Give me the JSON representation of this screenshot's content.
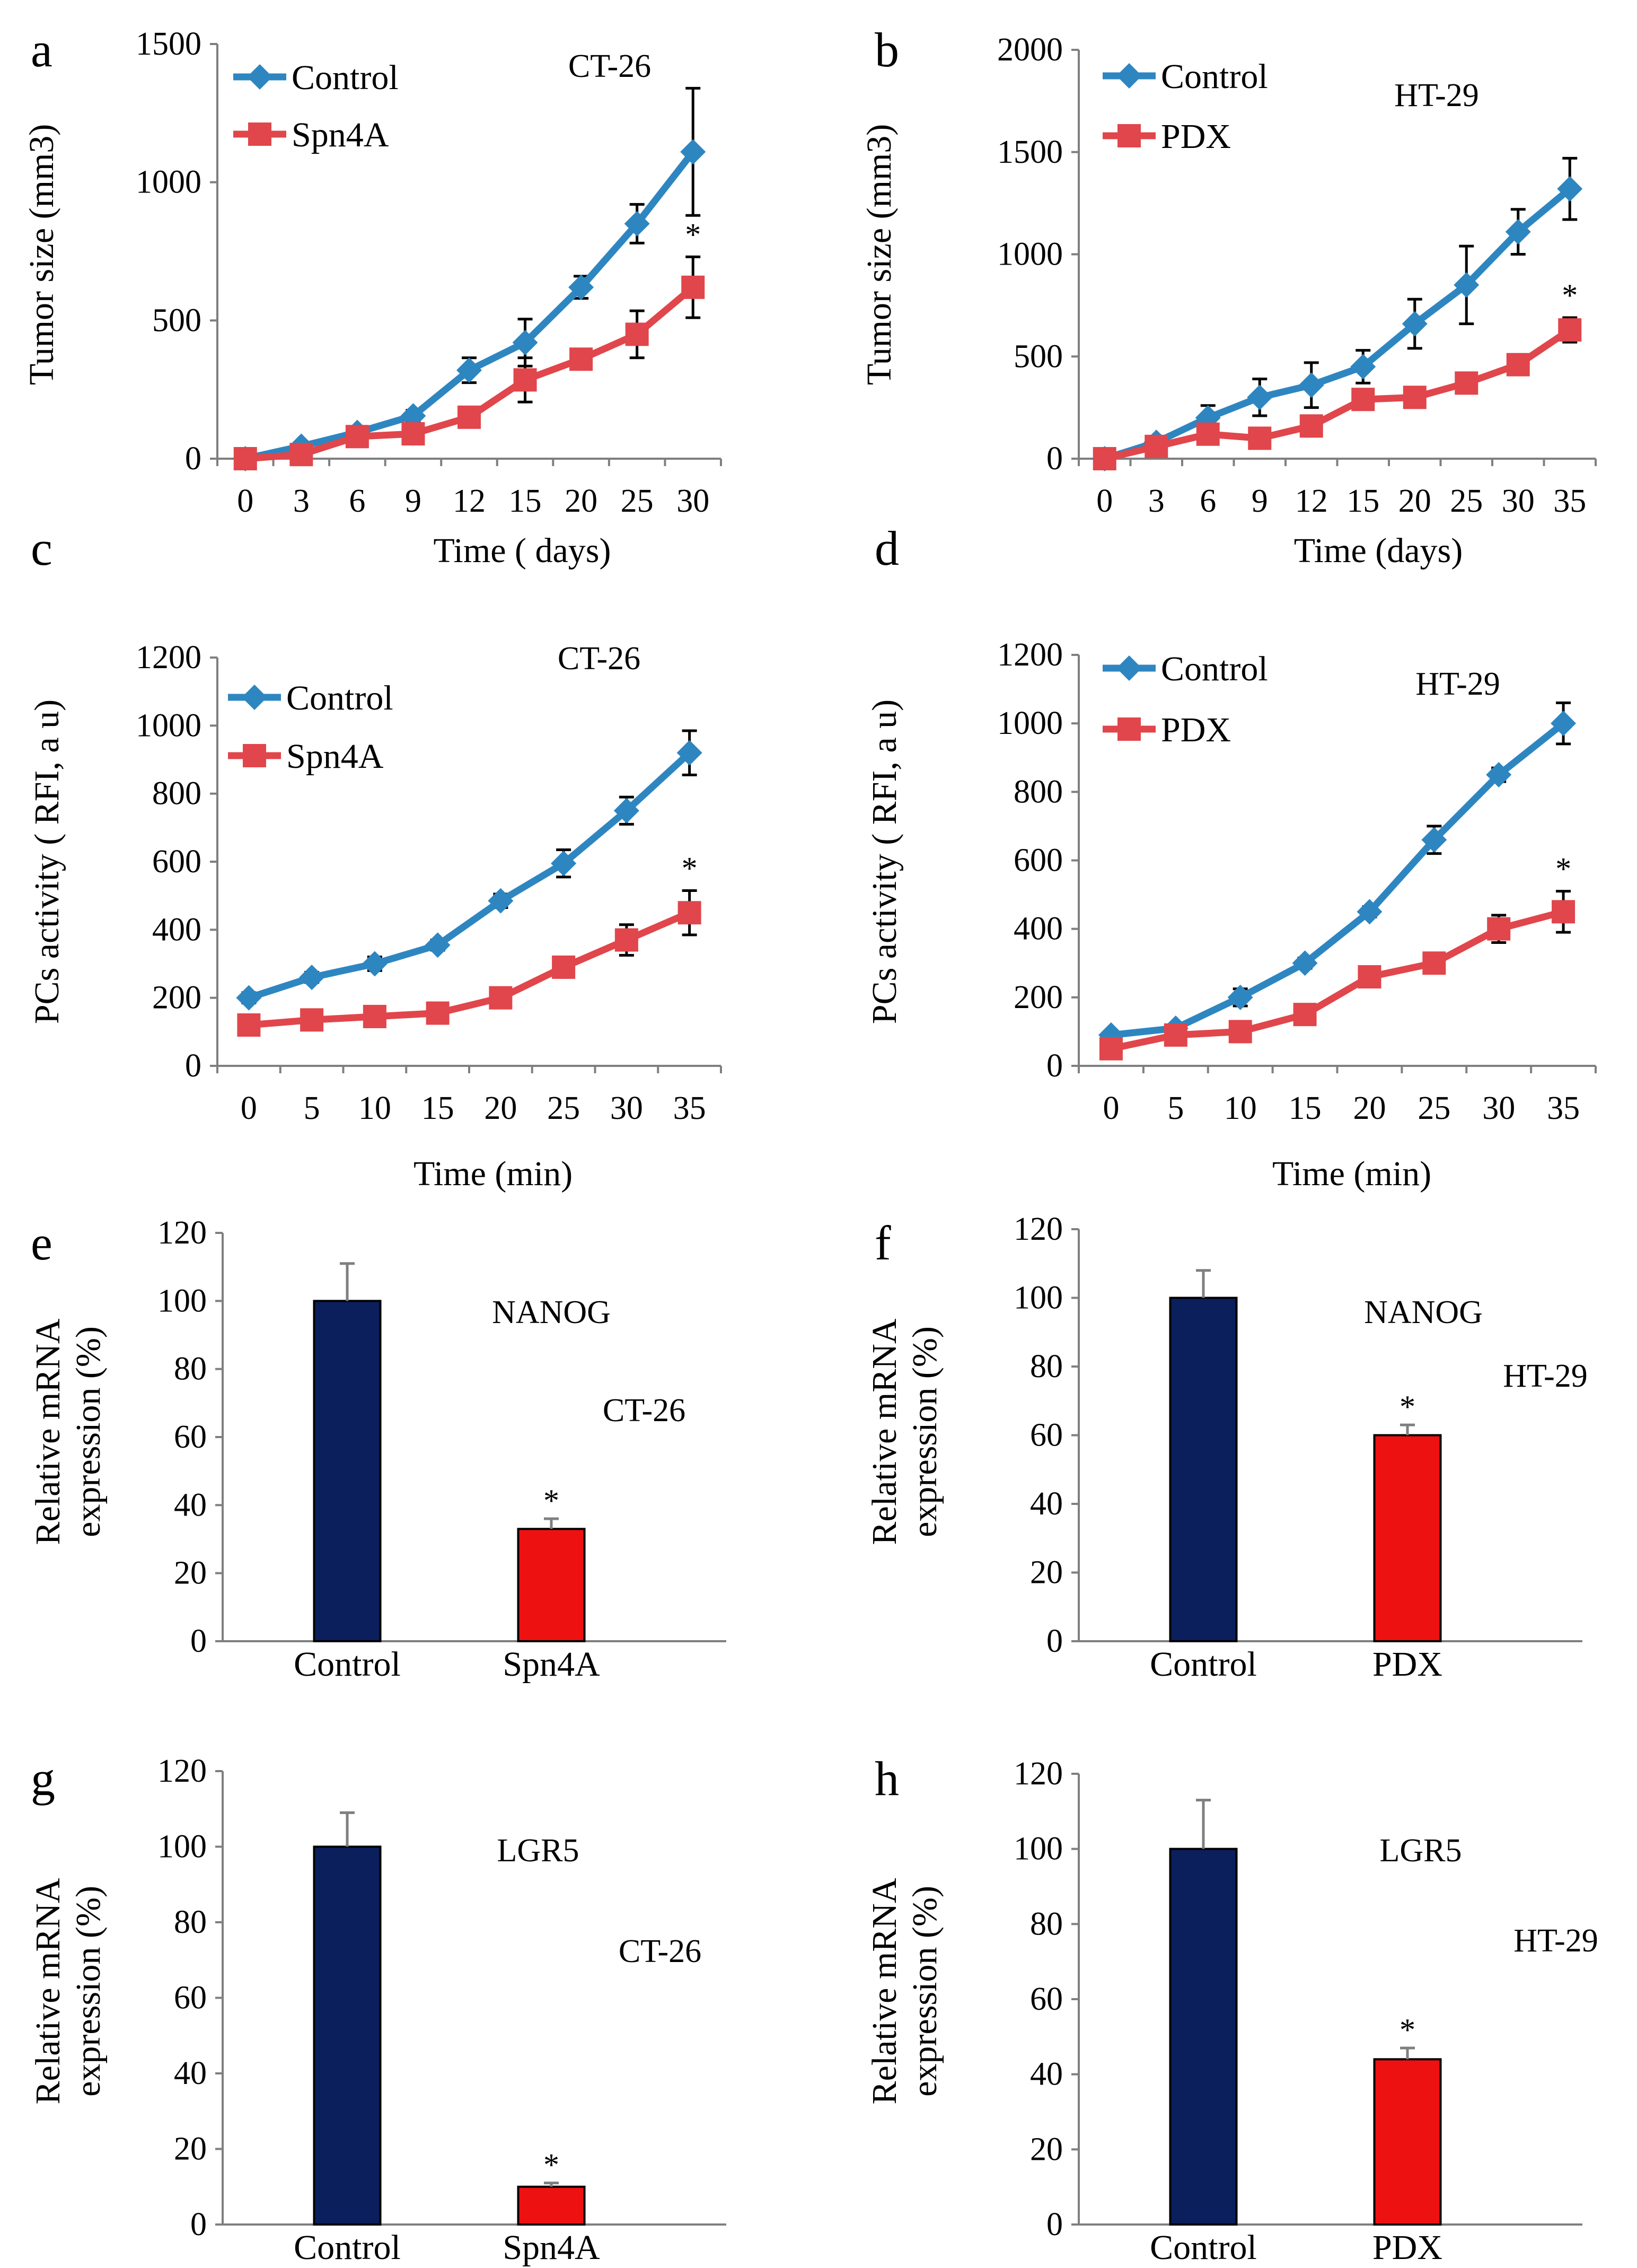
{
  "figure": {
    "background": "#ffffff"
  },
  "chart_data": [
    {
      "id": "a",
      "type": "line",
      "letter": "a",
      "label": "CT-26",
      "xlabel": "Time ( days)",
      "ylabel": "Tumor size (mm3)",
      "categories": [
        "0",
        "3",
        "6",
        "9",
        "12",
        "15",
        "20",
        "25",
        "30"
      ],
      "ylim": [
        0,
        1500
      ],
      "yticks": [
        0,
        500,
        1000,
        1500
      ],
      "series": [
        {
          "name": "Control",
          "color": "#2e86c1",
          "marker": "diamond",
          "values": [
            0,
            45,
            95,
            155,
            320,
            420,
            620,
            850,
            1110
          ],
          "errors": [
            0,
            10,
            15,
            20,
            45,
            85,
            40,
            70,
            230
          ]
        },
        {
          "name": "Spn4A",
          "color": "#e0464b",
          "marker": "square",
          "values": [
            0,
            15,
            80,
            90,
            150,
            285,
            360,
            450,
            620
          ],
          "errors": [
            0,
            10,
            20,
            20,
            25,
            80,
            20,
            85,
            110
          ]
        }
      ],
      "star": "*"
    },
    {
      "id": "b",
      "type": "line",
      "letter": "b",
      "label": "HT-29",
      "xlabel": "Time (days)",
      "ylabel": "Tumor size (mm3)",
      "categories": [
        "0",
        "3",
        "6",
        "9",
        "12",
        "15",
        "20",
        "25",
        "30",
        "35"
      ],
      "ylim": [
        0,
        2000
      ],
      "yticks": [
        0,
        500,
        1000,
        1500,
        2000
      ],
      "series": [
        {
          "name": "Control",
          "color": "#2e86c1",
          "marker": "diamond",
          "values": [
            0,
            80,
            200,
            300,
            360,
            450,
            660,
            850,
            1110,
            1320
          ],
          "errors": [
            0,
            20,
            60,
            90,
            110,
            80,
            120,
            190,
            110,
            150
          ]
        },
        {
          "name": "PDX",
          "color": "#e0464b",
          "marker": "square",
          "values": [
            0,
            60,
            120,
            100,
            160,
            290,
            300,
            370,
            460,
            630
          ],
          "errors": [
            0,
            20,
            40,
            40,
            50,
            40,
            30,
            30,
            40,
            60
          ]
        }
      ],
      "star": "*"
    },
    {
      "id": "c",
      "type": "line",
      "letter": "c",
      "label": "CT-26",
      "xlabel": "Time (min)",
      "ylabel": "PCs activity ( RFI,  a u)",
      "categories": [
        "0",
        "5",
        "10",
        "15",
        "20",
        "25",
        "30",
        "35"
      ],
      "ylim": [
        0,
        1200
      ],
      "yticks": [
        0,
        200,
        400,
        600,
        800,
        1000,
        1200
      ],
      "series": [
        {
          "name": "Control",
          "color": "#2e86c1",
          "marker": "diamond",
          "values": [
            200,
            260,
            300,
            355,
            485,
            595,
            750,
            920
          ],
          "errors": [
            15,
            15,
            20,
            15,
            20,
            40,
            40,
            65
          ]
        },
        {
          "name": "Spn4A",
          "color": "#e0464b",
          "marker": "square",
          "values": [
            120,
            135,
            145,
            155,
            200,
            290,
            370,
            450
          ],
          "errors": [
            10,
            10,
            10,
            10,
            15,
            30,
            45,
            65
          ]
        }
      ],
      "star": "*"
    },
    {
      "id": "d",
      "type": "line",
      "letter": "d",
      "label": "HT-29",
      "xlabel": "Time (min)",
      "ylabel": "PCs activity ( RFI,  a u)",
      "categories": [
        "0",
        "5",
        "10",
        "15",
        "20",
        "25",
        "30",
        "35"
      ],
      "ylim": [
        0,
        1200
      ],
      "yticks": [
        0,
        200,
        400,
        600,
        800,
        1000,
        1200
      ],
      "series": [
        {
          "name": "Control",
          "color": "#2e86c1",
          "marker": "diamond",
          "values": [
            90,
            110,
            200,
            300,
            450,
            660,
            850,
            1000
          ],
          "errors": [
            10,
            10,
            25,
            15,
            15,
            40,
            20,
            60
          ]
        },
        {
          "name": "PDX",
          "color": "#e0464b",
          "marker": "square",
          "values": [
            50,
            90,
            100,
            150,
            260,
            300,
            400,
            450
          ],
          "errors": [
            10,
            10,
            10,
            15,
            20,
            25,
            40,
            60
          ]
        }
      ],
      "star": "*"
    },
    {
      "id": "e",
      "type": "bar",
      "letter": "e",
      "label": "NANOG",
      "label2": "CT-26",
      "ylabel_lines": [
        "Relative mRNA",
        "expression (%)"
      ],
      "categories": [
        "Control",
        "Spn4A"
      ],
      "values": [
        100,
        33
      ],
      "errors": [
        11,
        3
      ],
      "colors": [
        "#0b1f5c",
        "#ee1111"
      ],
      "ylim": [
        0,
        120
      ],
      "yticks": [
        0,
        20,
        40,
        60,
        80,
        100,
        120
      ],
      "star": "*"
    },
    {
      "id": "f",
      "type": "bar",
      "letter": "f",
      "label": "NANOG",
      "label2": "HT-29",
      "ylabel_lines": [
        "Relative mRNA",
        "expression (%)"
      ],
      "categories": [
        "Control",
        "PDX"
      ],
      "values": [
        100,
        60
      ],
      "errors": [
        8,
        3
      ],
      "colors": [
        "#0b1f5c",
        "#ee1111"
      ],
      "ylim": [
        0,
        120
      ],
      "yticks": [
        0,
        20,
        40,
        60,
        80,
        100,
        120
      ],
      "star": "*"
    },
    {
      "id": "g",
      "type": "bar",
      "letter": "g",
      "label": "LGR5",
      "label2": "CT-26",
      "ylabel_lines": [
        "Relative mRNA",
        "expression (%)"
      ],
      "categories": [
        "Control",
        "Spn4A"
      ],
      "values": [
        100,
        10
      ],
      "errors": [
        9,
        1
      ],
      "colors": [
        "#0b1f5c",
        "#ee1111"
      ],
      "ylim": [
        0,
        120
      ],
      "yticks": [
        0,
        20,
        40,
        60,
        80,
        100,
        120
      ],
      "star": "*"
    },
    {
      "id": "h",
      "type": "bar",
      "letter": "h",
      "label": "LGR5",
      "label2": "HT-29",
      "ylabel_lines": [
        "Relative mRNA",
        "expression (%)"
      ],
      "categories": [
        "Control",
        "PDX"
      ],
      "values": [
        100,
        44
      ],
      "errors": [
        13,
        3
      ],
      "colors": [
        "#0b1f5c",
        "#ee1111"
      ],
      "ylim": [
        0,
        120
      ],
      "yticks": [
        0,
        20,
        40,
        60,
        80,
        100,
        120
      ],
      "star": "*"
    }
  ]
}
